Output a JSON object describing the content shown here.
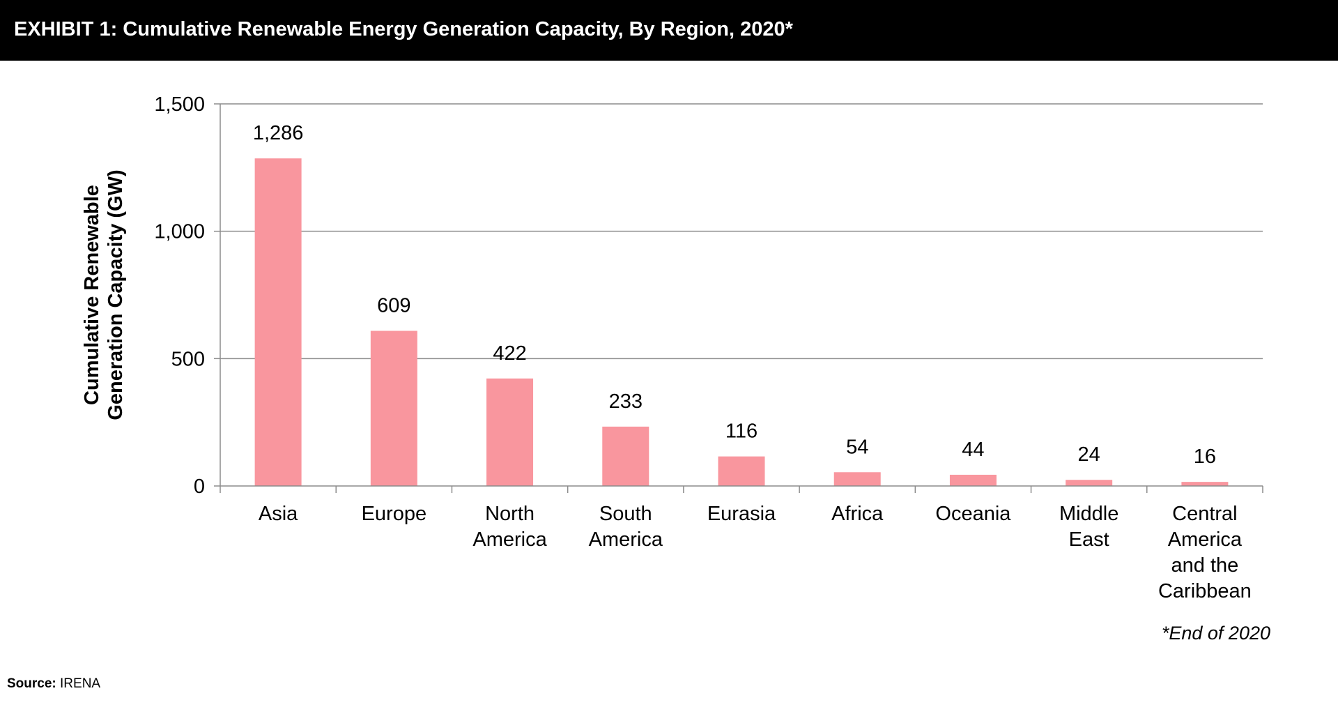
{
  "header": {
    "title": "EXHIBIT 1: Cumulative Renewable Energy Generation Capacity, By Region, 2020*"
  },
  "footnote": "*End of 2020",
  "source": {
    "label": "Source:",
    "value": "IRENA"
  },
  "colors": {
    "header_bg": "#000000",
    "header_text": "#ffffff",
    "bar": "#f9969e",
    "gridline": "#8c8c8c",
    "axis": "#8c8c8c",
    "text": "#000000"
  },
  "chart_data": {
    "type": "bar",
    "title": "EXHIBIT 1: Cumulative Renewable Energy Generation Capacity, By Region, 2020*",
    "ylabel": [
      "Cumulative Renewable",
      "Generation Capacity (GW)"
    ],
    "xlabel": "",
    "ylim": [
      0,
      1500
    ],
    "yticks": [
      0,
      500,
      1000,
      1500
    ],
    "ytick_labels": [
      "0",
      "500",
      "1,000",
      "1,500"
    ],
    "grid": true,
    "categories": [
      [
        "Asia"
      ],
      [
        "Europe"
      ],
      [
        "North",
        "America"
      ],
      [
        "South",
        "America"
      ],
      [
        "Eurasia"
      ],
      [
        "Africa"
      ],
      [
        "Oceania"
      ],
      [
        "Middle",
        "East"
      ],
      [
        "Central",
        "America",
        "and the",
        "Caribbean"
      ]
    ],
    "values": [
      1286,
      609,
      422,
      233,
      116,
      54,
      44,
      24,
      16
    ],
    "value_labels": [
      "1,286",
      "609",
      "422",
      "233",
      "116",
      "54",
      "44",
      "24",
      "16"
    ]
  }
}
